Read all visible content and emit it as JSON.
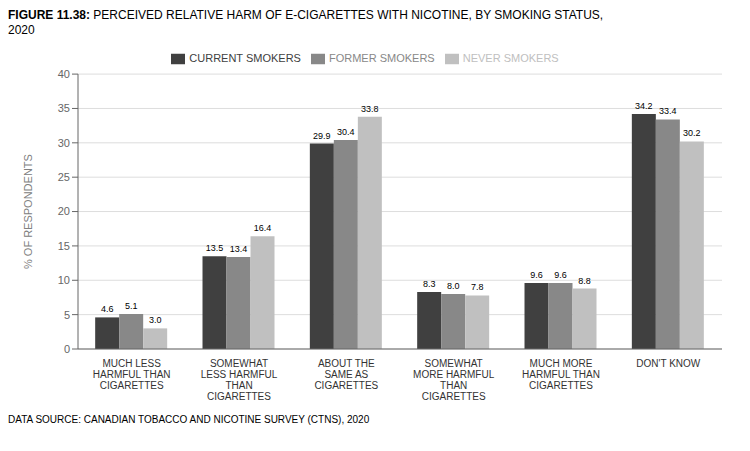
{
  "chart_data": {
    "type": "bar",
    "title": "FIGURE 11.38: PERCEIVED RELATIVE HARM OF E-CIGARETTES WITH NICOTINE, BY SMOKING STATUS,\n2020",
    "categories": [
      "MUCH LESS\nHARMFUL THAN\nCIGARETTES",
      "SOMEWHAT\nLESS HARMFUL\nTHAN\nCIGARETTES",
      "ABOUT THE\nSAME AS\nCIGARETTES",
      "SOMEWHAT\nMORE HARMFUL\nTHAN\nCIGARETTES",
      "MUCH MORE\nHARMFUL THAN\nCIGARETTES",
      "DON'T KNOW"
    ],
    "series": [
      {
        "name": "CURRENT SMOKERS",
        "color": "#404040",
        "values": [
          4.6,
          13.5,
          29.9,
          8.3,
          9.6,
          34.2
        ],
        "value_labels": [
          "4.6",
          "13.5",
          "29.9",
          "8.3",
          "9.6",
          "34.2"
        ]
      },
      {
        "name": "FORMER SMOKERS",
        "color": "#888888",
        "values": [
          5.1,
          13.4,
          30.4,
          8.0,
          9.6,
          33.4
        ],
        "value_labels": [
          "5.1",
          "13.4",
          "30.4",
          "8.0",
          "9.6",
          "33.4"
        ]
      },
      {
        "name": "NEVER SMOKERS",
        "color": "#c0c0c0",
        "values": [
          3.0,
          16.4,
          33.8,
          7.8,
          8.8,
          30.2
        ],
        "value_labels": [
          "3.0",
          "16.4",
          "33.8",
          "7.8",
          "8.8",
          "30.2"
        ]
      }
    ],
    "ylabel": "% OF RESPONDENTS",
    "ylim": [
      0,
      40
    ],
    "yticks": [
      0,
      5,
      10,
      15,
      20,
      25,
      30,
      35,
      40
    ],
    "grid": true,
    "legend": "top",
    "data_labels": true,
    "annotations": [
      "DATA SOURCE: CANADIAN TOBACCO AND NICOTINE SURVEY (CTNS), 2020"
    ]
  }
}
